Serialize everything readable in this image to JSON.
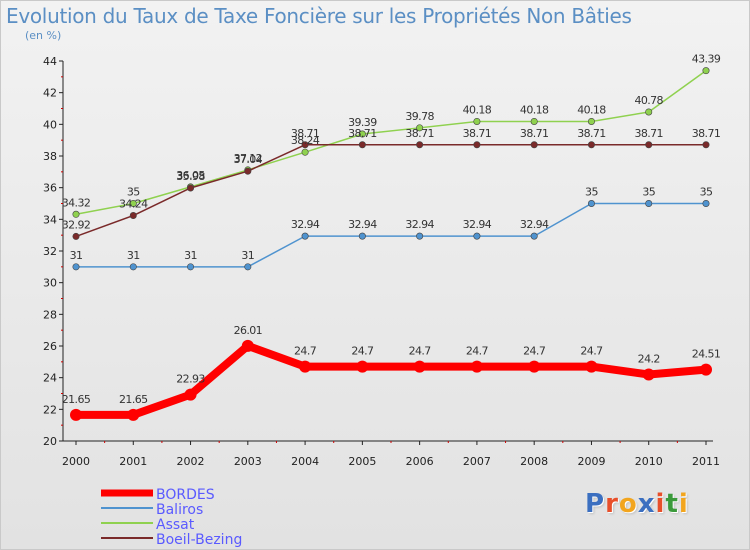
{
  "chart_data": {
    "type": "line",
    "title": "Evolution du Taux de Taxe Foncière sur les Propriétés Non Bâties",
    "unit_label": "(en %)",
    "xlabel": "",
    "ylabel": "",
    "x": [
      "2000",
      "2001",
      "2002",
      "2003",
      "2004",
      "2005",
      "2006",
      "2007",
      "2008",
      "2009",
      "2010",
      "2011"
    ],
    "ylim": [
      20,
      44
    ],
    "yticks": [
      20,
      22,
      24,
      26,
      28,
      30,
      32,
      34,
      36,
      38,
      40,
      42,
      44
    ],
    "grid": false,
    "legend_position": "bottom-left",
    "series": [
      {
        "name": "BORDES",
        "color": "#ff0000",
        "values": [
          21.65,
          21.65,
          22.93,
          26.01,
          24.7,
          24.7,
          24.7,
          24.7,
          24.7,
          24.7,
          24.2,
          24.51
        ],
        "labels": [
          "21.65",
          "21.65",
          "22.93",
          "26.01",
          "24.7",
          "24.7",
          "24.7",
          "24.7",
          "24.7",
          "24.7",
          "24.2",
          "24.51"
        ]
      },
      {
        "name": "Baliros",
        "color": "#4f93cf",
        "values": [
          31,
          31,
          31,
          31,
          32.94,
          32.94,
          32.94,
          32.94,
          32.94,
          35,
          35,
          35
        ],
        "labels": [
          "31",
          "31",
          "31",
          "31",
          "32.94",
          "32.94",
          "32.94",
          "32.94",
          "32.94",
          "35",
          "35",
          "35"
        ]
      },
      {
        "name": "Assat",
        "color": "#8fd14f",
        "values": [
          34.32,
          35,
          36.05,
          37.12,
          38.24,
          39.39,
          39.78,
          40.18,
          40.18,
          40.18,
          40.78,
          43.39
        ],
        "labels": [
          "34.32",
          "35",
          "36.05",
          "37.12",
          "38.24",
          "39.39",
          "39.78",
          "40.18",
          "40.18",
          "40.18",
          "40.78",
          "43.39"
        ]
      },
      {
        "name": "Boeil-Bezing",
        "color": "#7a2a2a",
        "values": [
          32.92,
          34.24,
          35.98,
          37.04,
          38.71,
          38.71,
          38.71,
          38.71,
          38.71,
          38.71,
          38.71,
          38.71
        ],
        "labels": [
          "32.92",
          "34.24",
          "35.98",
          "37.04",
          "38.71",
          "38.71",
          "38.71",
          "38.71",
          "38.71",
          "38.71",
          "38.71",
          "38.71"
        ]
      }
    ]
  },
  "logo": {
    "text": "Proxiti",
    "letters": [
      "P",
      "r",
      "o",
      "x",
      "i",
      "t",
      "i"
    ],
    "colors": [
      "#3b6fc0",
      "#e84f2a",
      "#f2a51e",
      "#3b6fc0",
      "#e84f2a",
      "#3b9a3b",
      "#f2a51e"
    ]
  }
}
